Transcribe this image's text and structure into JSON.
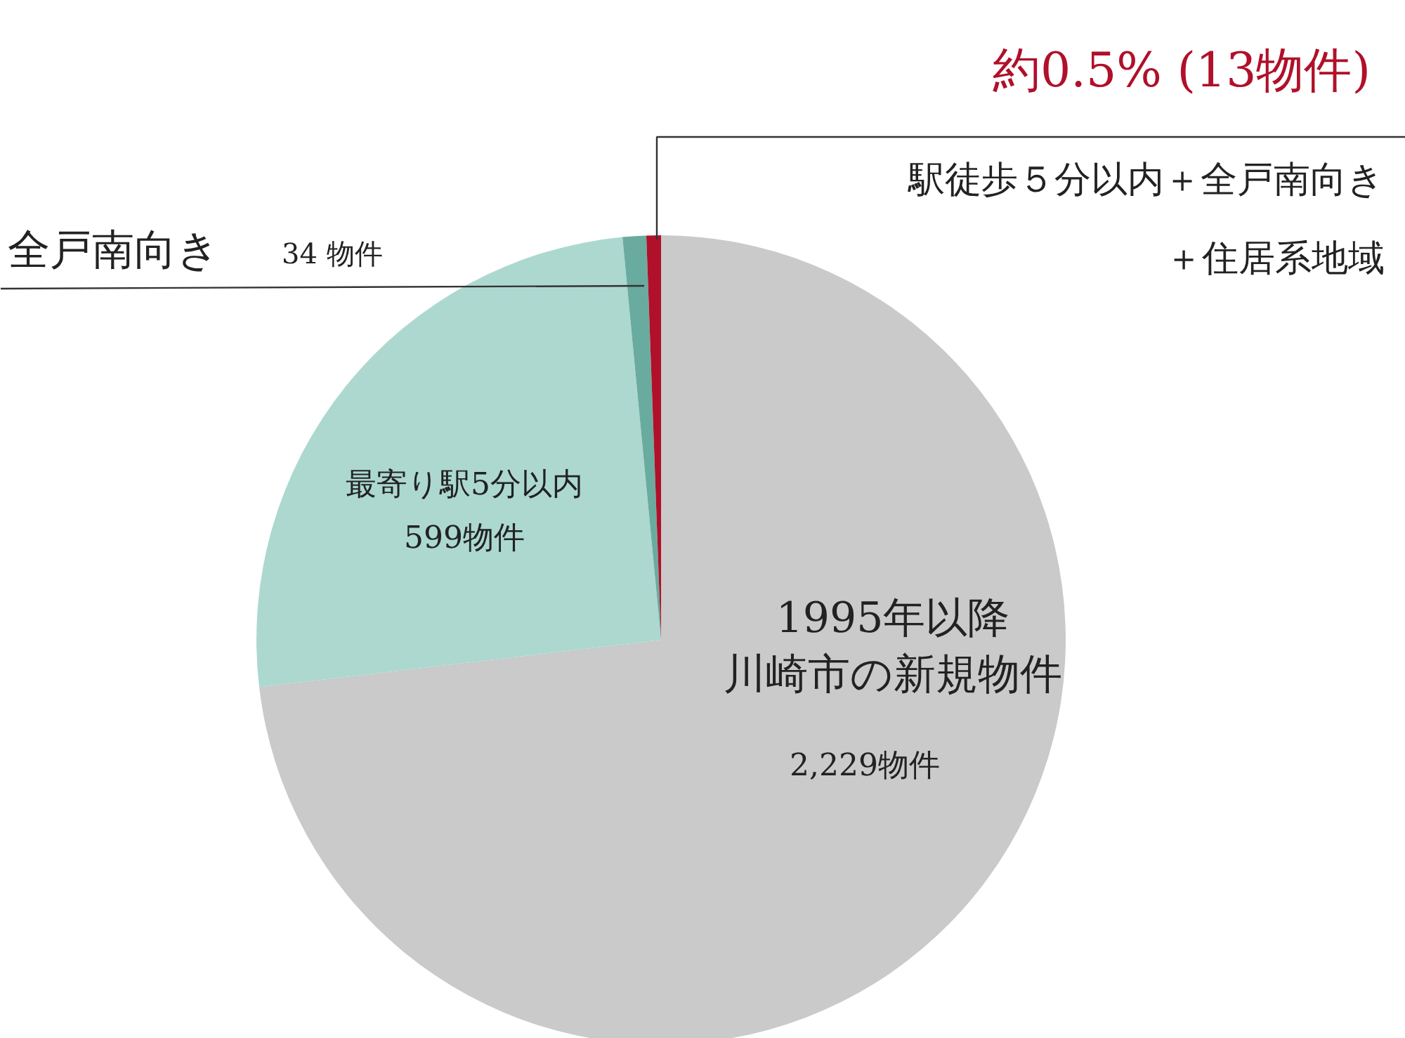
{
  "chart_data": {
    "type": "pie",
    "categories": [
      "1995年以降川崎市の新規物件",
      "最寄り駅5分以内",
      "全戸南向き",
      "駅徒歩５分以内＋全戸南向き＋住居系地域"
    ],
    "values": [
      73.13,
      25.35,
      0.94,
      0.58
    ],
    "colors": [
      "#c9cac9",
      "#acd8d0",
      "#6aab9f",
      "#b0102a"
    ],
    "annotations": [
      "2,229物件",
      "599物件",
      "34 物件",
      "約0.5% (13物件)"
    ]
  }
}
